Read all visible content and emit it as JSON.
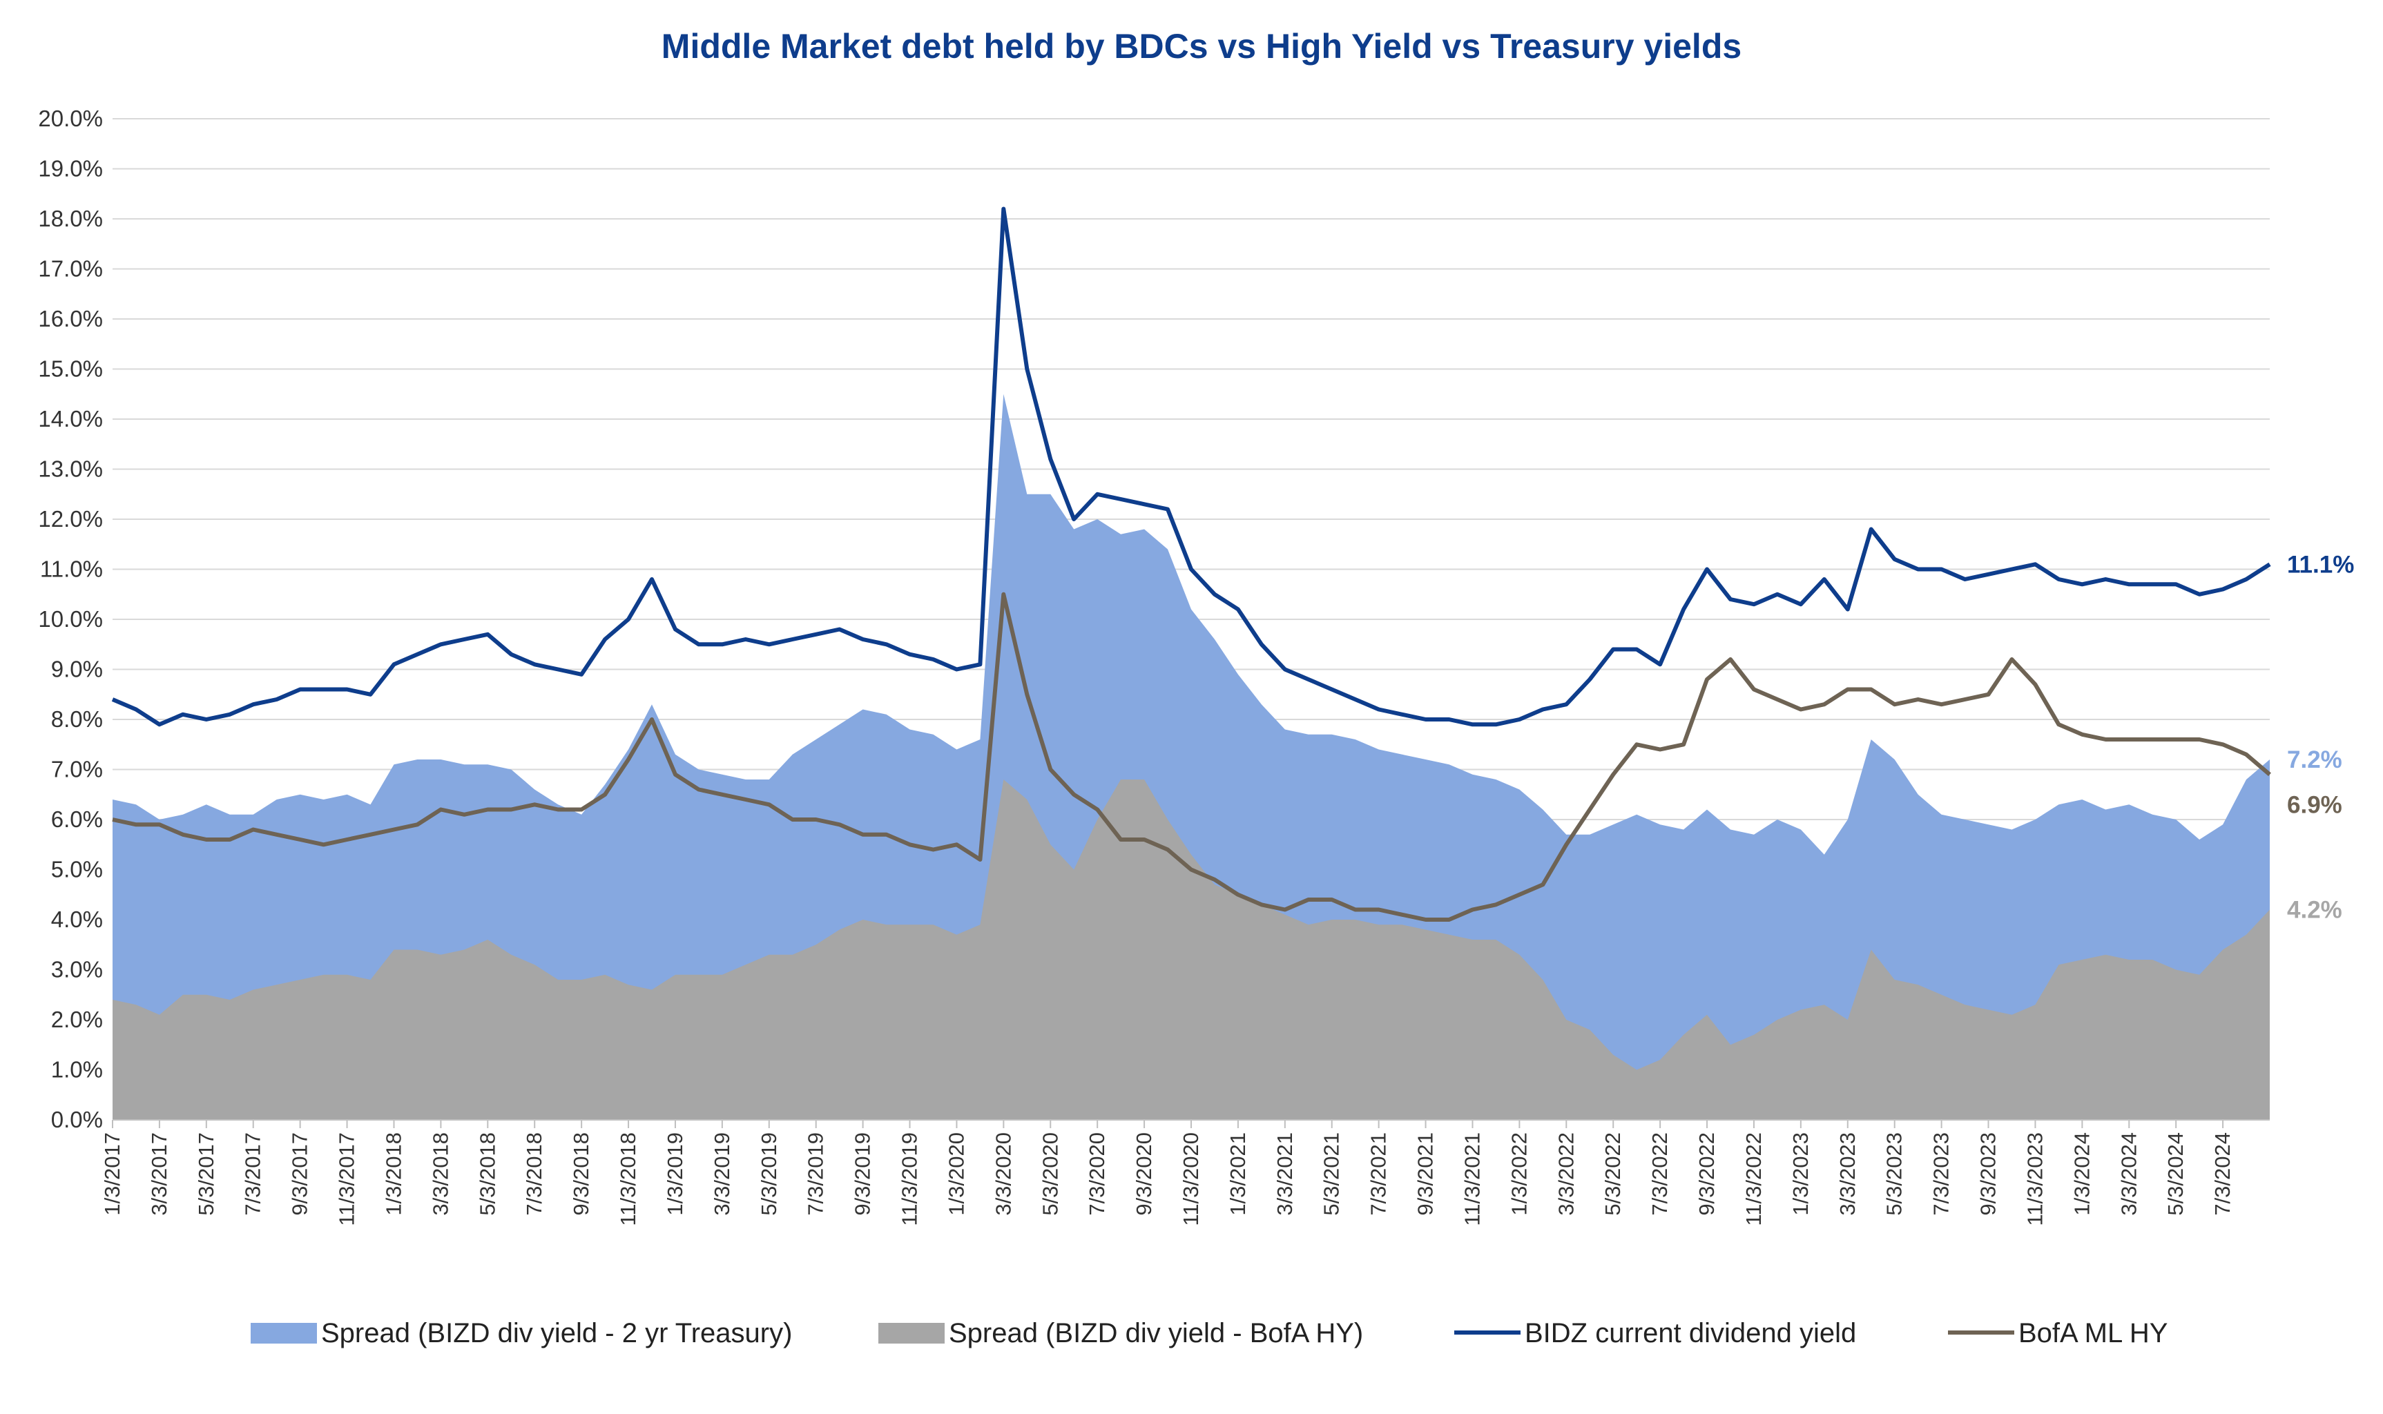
{
  "chart_data": {
    "type": "area",
    "title": "Middle Market debt held by BDCs vs High Yield vs Treasury yields",
    "xlabel": "",
    "ylabel": "",
    "ylim": [
      0,
      20
    ],
    "y_tick_labels": [
      "0.0%",
      "1.0%",
      "2.0%",
      "3.0%",
      "4.0%",
      "5.0%",
      "6.0%",
      "7.0%",
      "8.0%",
      "9.0%",
      "10.0%",
      "11.0%",
      "12.0%",
      "13.0%",
      "14.0%",
      "15.0%",
      "16.0%",
      "17.0%",
      "18.0%",
      "19.0%",
      "20.0%"
    ],
    "grid": true,
    "legend_placement": "bottom",
    "x_tick_labels": [
      "1/3/2017",
      "3/3/2017",
      "5/3/2017",
      "7/3/2017",
      "9/3/2017",
      "11/3/2017",
      "1/3/2018",
      "3/3/2018",
      "5/3/2018",
      "7/3/2018",
      "9/3/2018",
      "11/3/2018",
      "1/3/2019",
      "3/3/2019",
      "5/3/2019",
      "7/3/2019",
      "9/3/2019",
      "11/3/2019",
      "1/3/2020",
      "3/3/2020",
      "5/3/2020",
      "7/3/2020",
      "9/3/2020",
      "11/3/2020",
      "1/3/2021",
      "3/3/2021",
      "5/3/2021",
      "7/3/2021",
      "9/3/2021",
      "11/3/2021",
      "1/3/2022",
      "3/3/2022",
      "5/3/2022",
      "7/3/2022",
      "9/3/2022",
      "11/3/2022",
      "1/3/2023",
      "3/3/2023",
      "5/3/2023",
      "7/3/2023",
      "9/3/2023",
      "11/3/2023",
      "1/3/2024",
      "3/3/2024",
      "5/3/2024",
      "7/3/2024"
    ],
    "x": [
      "2017-01",
      "2017-02",
      "2017-03",
      "2017-04",
      "2017-05",
      "2017-06",
      "2017-07",
      "2017-08",
      "2017-09",
      "2017-10",
      "2017-11",
      "2017-12",
      "2018-01",
      "2018-02",
      "2018-03",
      "2018-04",
      "2018-05",
      "2018-06",
      "2018-07",
      "2018-08",
      "2018-09",
      "2018-10",
      "2018-11",
      "2018-12",
      "2019-01",
      "2019-02",
      "2019-03",
      "2019-04",
      "2019-05",
      "2019-06",
      "2019-07",
      "2019-08",
      "2019-09",
      "2019-10",
      "2019-11",
      "2019-12",
      "2020-01",
      "2020-02",
      "2020-03",
      "2020-04",
      "2020-05",
      "2020-06",
      "2020-07",
      "2020-08",
      "2020-09",
      "2020-10",
      "2020-11",
      "2020-12",
      "2021-01",
      "2021-02",
      "2021-03",
      "2021-04",
      "2021-05",
      "2021-06",
      "2021-07",
      "2021-08",
      "2021-09",
      "2021-10",
      "2021-11",
      "2021-12",
      "2022-01",
      "2022-02",
      "2022-03",
      "2022-04",
      "2022-05",
      "2022-06",
      "2022-07",
      "2022-08",
      "2022-09",
      "2022-10",
      "2022-11",
      "2022-12",
      "2023-01",
      "2023-02",
      "2023-03",
      "2023-04",
      "2023-05",
      "2023-06",
      "2023-07",
      "2023-08",
      "2023-09",
      "2023-10",
      "2023-11",
      "2023-12",
      "2024-01",
      "2024-02",
      "2024-03",
      "2024-04",
      "2024-05",
      "2024-06",
      "2024-07",
      "2024-08",
      "2024-09"
    ],
    "series": [
      {
        "name": "Spread (BIZD div yield - 2 yr Treasury)",
        "kind": "area",
        "color": "#86a8e0",
        "values": [
          6.4,
          6.3,
          6.0,
          6.1,
          6.3,
          6.1,
          6.1,
          6.4,
          6.5,
          6.4,
          6.5,
          6.3,
          7.1,
          7.2,
          7.2,
          7.1,
          7.1,
          7.0,
          6.6,
          6.3,
          6.1,
          6.7,
          7.4,
          8.3,
          7.3,
          7.0,
          6.9,
          6.8,
          6.8,
          7.3,
          7.6,
          7.9,
          8.2,
          8.1,
          7.8,
          7.7,
          7.4,
          7.6,
          14.5,
          12.5,
          12.5,
          11.8,
          12.0,
          11.7,
          11.8,
          11.4,
          10.2,
          9.6,
          8.9,
          8.3,
          7.8,
          7.7,
          7.7,
          7.6,
          7.4,
          7.3,
          7.2,
          7.1,
          6.9,
          6.8,
          6.6,
          6.2,
          5.7,
          5.7,
          5.9,
          6.1,
          5.9,
          5.8,
          6.2,
          5.8,
          5.7,
          6.0,
          5.8,
          5.3,
          6.0,
          7.6,
          7.2,
          6.5,
          6.1,
          6.0,
          5.9,
          5.8,
          6.0,
          6.3,
          6.4,
          6.2,
          6.3,
          6.1,
          6.0,
          5.6,
          5.9,
          6.8,
          7.2
        ]
      },
      {
        "name": "Spread (BIZD div yield - BofA HY)",
        "kind": "area",
        "color": "#a6a6a6",
        "values": [
          2.4,
          2.3,
          2.1,
          2.5,
          2.5,
          2.4,
          2.6,
          2.7,
          2.8,
          2.9,
          2.9,
          2.8,
          3.4,
          3.4,
          3.3,
          3.4,
          3.6,
          3.3,
          3.1,
          2.8,
          2.8,
          2.9,
          2.7,
          2.6,
          2.9,
          2.9,
          2.9,
          3.1,
          3.3,
          3.3,
          3.5,
          3.8,
          4.0,
          3.9,
          3.9,
          3.9,
          3.7,
          3.9,
          6.8,
          6.4,
          5.5,
          5.0,
          6.0,
          6.8,
          6.8,
          6.0,
          5.3,
          4.7,
          4.5,
          4.3,
          4.1,
          3.9,
          4.0,
          4.0,
          3.9,
          3.9,
          3.8,
          3.7,
          3.6,
          3.6,
          3.3,
          2.8,
          2.0,
          1.8,
          1.3,
          1.0,
          1.2,
          1.7,
          2.1,
          1.5,
          1.7,
          2.0,
          2.2,
          2.3,
          2.0,
          3.4,
          2.8,
          2.7,
          2.5,
          2.3,
          2.2,
          2.1,
          2.3,
          3.1,
          3.2,
          3.3,
          3.2,
          3.2,
          3.0,
          2.9,
          3.4,
          3.7,
          4.2
        ]
      },
      {
        "name": "BIDZ current dividend yield",
        "kind": "line",
        "color": "#0e3d8c",
        "values": [
          8.4,
          8.2,
          7.9,
          8.1,
          8.0,
          8.1,
          8.3,
          8.4,
          8.6,
          8.6,
          8.6,
          8.5,
          9.1,
          9.3,
          9.5,
          9.6,
          9.7,
          9.3,
          9.1,
          9.0,
          8.9,
          9.6,
          10.0,
          10.8,
          9.8,
          9.5,
          9.5,
          9.6,
          9.5,
          9.6,
          9.7,
          9.8,
          9.6,
          9.5,
          9.3,
          9.2,
          9.0,
          9.1,
          18.2,
          15.0,
          13.2,
          12.0,
          12.5,
          12.4,
          12.3,
          12.2,
          11.0,
          10.5,
          10.2,
          9.5,
          9.0,
          8.8,
          8.6,
          8.4,
          8.2,
          8.1,
          8.0,
          8.0,
          7.9,
          7.9,
          8.0,
          8.2,
          8.3,
          8.8,
          9.4,
          9.4,
          9.1,
          10.2,
          11.0,
          10.4,
          10.3,
          10.5,
          10.3,
          10.8,
          10.2,
          11.8,
          11.2,
          11.0,
          11.0,
          10.8,
          10.9,
          11.0,
          11.1,
          10.8,
          10.7,
          10.8,
          10.7,
          10.7,
          10.7,
          10.5,
          10.6,
          10.8,
          11.1
        ]
      },
      {
        "name": "BofA ML HY",
        "kind": "line",
        "color": "#6e6354",
        "values": [
          6.0,
          5.9,
          5.9,
          5.7,
          5.6,
          5.6,
          5.8,
          5.7,
          5.6,
          5.5,
          5.6,
          5.7,
          5.8,
          5.9,
          6.2,
          6.1,
          6.2,
          6.2,
          6.3,
          6.2,
          6.2,
          6.5,
          7.2,
          8.0,
          6.9,
          6.6,
          6.5,
          6.4,
          6.3,
          6.0,
          6.0,
          5.9,
          5.7,
          5.7,
          5.5,
          5.4,
          5.5,
          5.2,
          10.5,
          8.5,
          7.0,
          6.5,
          6.2,
          5.6,
          5.6,
          5.4,
          5.0,
          4.8,
          4.5,
          4.3,
          4.2,
          4.4,
          4.4,
          4.2,
          4.2,
          4.1,
          4.0,
          4.0,
          4.2,
          4.3,
          4.5,
          4.7,
          5.5,
          6.2,
          6.9,
          7.5,
          7.4,
          7.5,
          8.8,
          9.2,
          8.6,
          8.4,
          8.2,
          8.3,
          8.6,
          8.6,
          8.3,
          8.4,
          8.3,
          8.4,
          8.5,
          9.2,
          8.7,
          7.9,
          7.7,
          7.6,
          7.6,
          7.6,
          7.6,
          7.6,
          7.5,
          7.3,
          6.9
        ]
      }
    ],
    "end_labels": [
      {
        "text": "11.1%",
        "color": "#0e3d8c",
        "value": 11.1
      },
      {
        "text": "7.2%",
        "color": "#86a8e0",
        "value": 7.2
      },
      {
        "text": "6.9%",
        "color": "#6e6354",
        "value": 6.9
      },
      {
        "text": "4.2%",
        "color": "#a6a6a6",
        "value": 4.2
      }
    ]
  }
}
